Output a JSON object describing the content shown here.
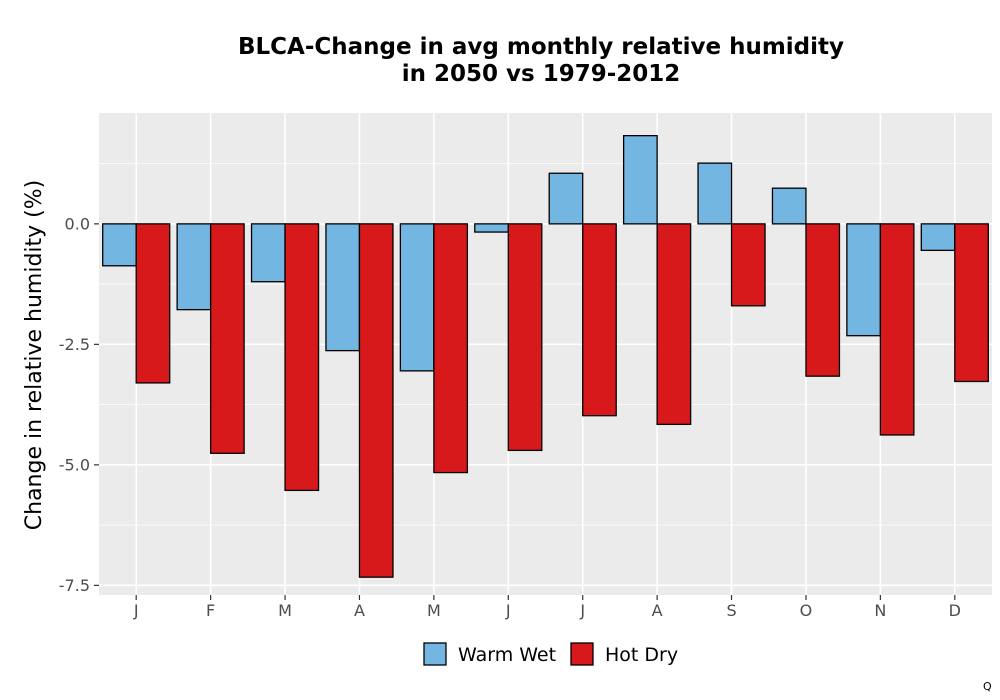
{
  "chart_data": {
    "type": "bar",
    "title_lines": [
      "BLCA-Change in avg monthly relative humidity",
      "in 2050 vs 1979-2012"
    ],
    "ylabel": "Change in relative humidity (%)",
    "xlabel": "",
    "categories": [
      "J",
      "F",
      "M",
      "A",
      "M",
      "J",
      "J",
      "A",
      "S",
      "O",
      "N",
      "D"
    ],
    "series": [
      {
        "name": "Warm Wet",
        "color": "#74b6e2",
        "values": [
          -0.87,
          -1.78,
          -1.2,
          -2.63,
          -3.05,
          -0.17,
          1.05,
          1.83,
          1.26,
          0.74,
          -2.32,
          -0.55
        ]
      },
      {
        "name": "Hot Dry",
        "color": "#d7191c",
        "values": [
          -3.3,
          -4.76,
          -5.53,
          -7.33,
          -5.16,
          -4.7,
          -3.98,
          -4.16,
          -1.7,
          -3.16,
          -4.38,
          -3.27
        ]
      }
    ],
    "ylim": [
      -7.7,
      2.3
    ],
    "yticks": [
      0.0,
      -2.5,
      -5.0,
      -7.5
    ],
    "ytick_labels": [
      "0.0",
      "-2.5",
      "-5.0",
      "-7.5"
    ],
    "grid": true,
    "legend_position": "bottom",
    "panel_background": "#ebebeb",
    "gridline_color": "#ffffff"
  },
  "corner_mark": "Q"
}
